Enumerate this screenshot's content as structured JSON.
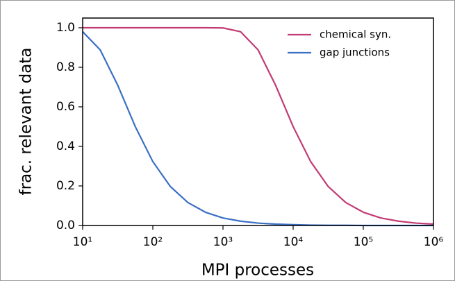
{
  "chart_data": {
    "type": "line",
    "xlabel": "MPI processes",
    "ylabel": "frac. relevant data",
    "x": [
      10,
      17.78,
      31.62,
      56.23,
      100,
      177.8,
      316.2,
      562.3,
      1000,
      1778,
      3162,
      5623,
      10000,
      17783,
      31623,
      56234,
      100000,
      177828,
      316228,
      562341,
      1000000
    ],
    "series": [
      {
        "name": "chemical syn.",
        "color": "#c23b74",
        "values": [
          1.0,
          1.0,
          1.0,
          1.0,
          1.0,
          1.0,
          1.0,
          1.0,
          0.999,
          0.98,
          0.888,
          0.709,
          0.5,
          0.323,
          0.197,
          0.116,
          0.067,
          0.038,
          0.022,
          0.012,
          0.007
        ]
      },
      {
        "name": "gap junctions",
        "color": "#3a6fc4",
        "values": [
          0.98,
          0.888,
          0.709,
          0.5,
          0.323,
          0.197,
          0.116,
          0.067,
          0.038,
          0.022,
          0.012,
          0.007,
          0.004,
          0.002,
          0.001,
          0.001,
          0.0,
          0.0,
          0.0,
          0.0,
          0.0
        ]
      }
    ],
    "xlog": true,
    "xlim": [
      10,
      1000000
    ],
    "xticks": [
      {
        "value": 10,
        "label": "10¹"
      },
      {
        "value": 100,
        "label": "10²"
      },
      {
        "value": 1000,
        "label": "10³"
      },
      {
        "value": 10000,
        "label": "10⁴"
      },
      {
        "value": 100000,
        "label": "10⁵"
      },
      {
        "value": 1000000,
        "label": "10⁶"
      }
    ],
    "ylim": [
      0,
      1.049
    ],
    "yticks": [
      {
        "value": 0,
        "label": "0.0"
      },
      {
        "value": 0.2,
        "label": "0.2"
      },
      {
        "value": 0.4,
        "label": "0.4"
      },
      {
        "value": 0.6,
        "label": "0.6"
      },
      {
        "value": 0.8,
        "label": "0.8"
      },
      {
        "value": 1.0,
        "label": "1.0"
      }
    ],
    "legend": "upper right",
    "grid": false
  }
}
